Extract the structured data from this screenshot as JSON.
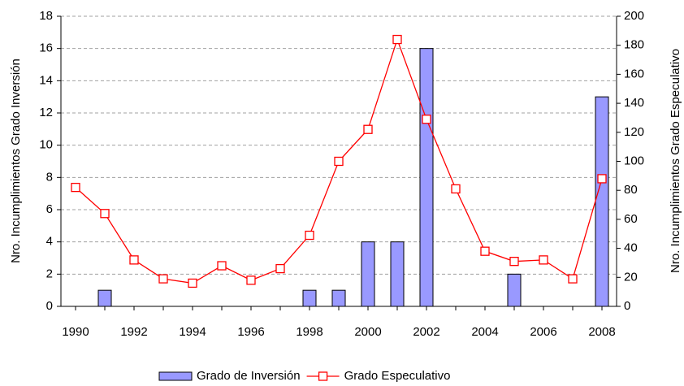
{
  "chart_data": {
    "type": "bar-line",
    "categories": [
      "1990",
      null,
      "1992",
      null,
      "1994",
      null,
      "1996",
      null,
      "1998",
      null,
      "2000",
      null,
      "2002",
      null,
      "2004",
      null,
      "2006",
      null,
      "2008"
    ],
    "y_label": "Nro. Incumplimientos  Grado Inversión",
    "y2_label": "Nro. Incumplimientos  Grado Especulativo",
    "series": [
      {
        "name": "Grado de Inversión",
        "color": "#9999ff",
        "type": "bar",
        "values": [
          0,
          1,
          0,
          0,
          0,
          0,
          0,
          0,
          1,
          1,
          4,
          4,
          16,
          0,
          0,
          2,
          0,
          0,
          13
        ]
      },
      {
        "name": "Grado Especulativo",
        "color": "#ff0000",
        "type": "line",
        "axis": "y2",
        "values": [
          82,
          64,
          32,
          19,
          16,
          28,
          18,
          26,
          49,
          100,
          122,
          184,
          129,
          81,
          38,
          31,
          32,
          19,
          88
        ]
      }
    ],
    "ylim": [
      0,
      18
    ],
    "yticks": [
      0,
      2,
      4,
      6,
      8,
      10,
      12,
      14,
      16,
      18
    ],
    "y2lim": [
      0,
      200
    ],
    "y2ticks": [
      0,
      20,
      40,
      60,
      80,
      100,
      120,
      140,
      160,
      180,
      200
    ],
    "grid": true
  }
}
